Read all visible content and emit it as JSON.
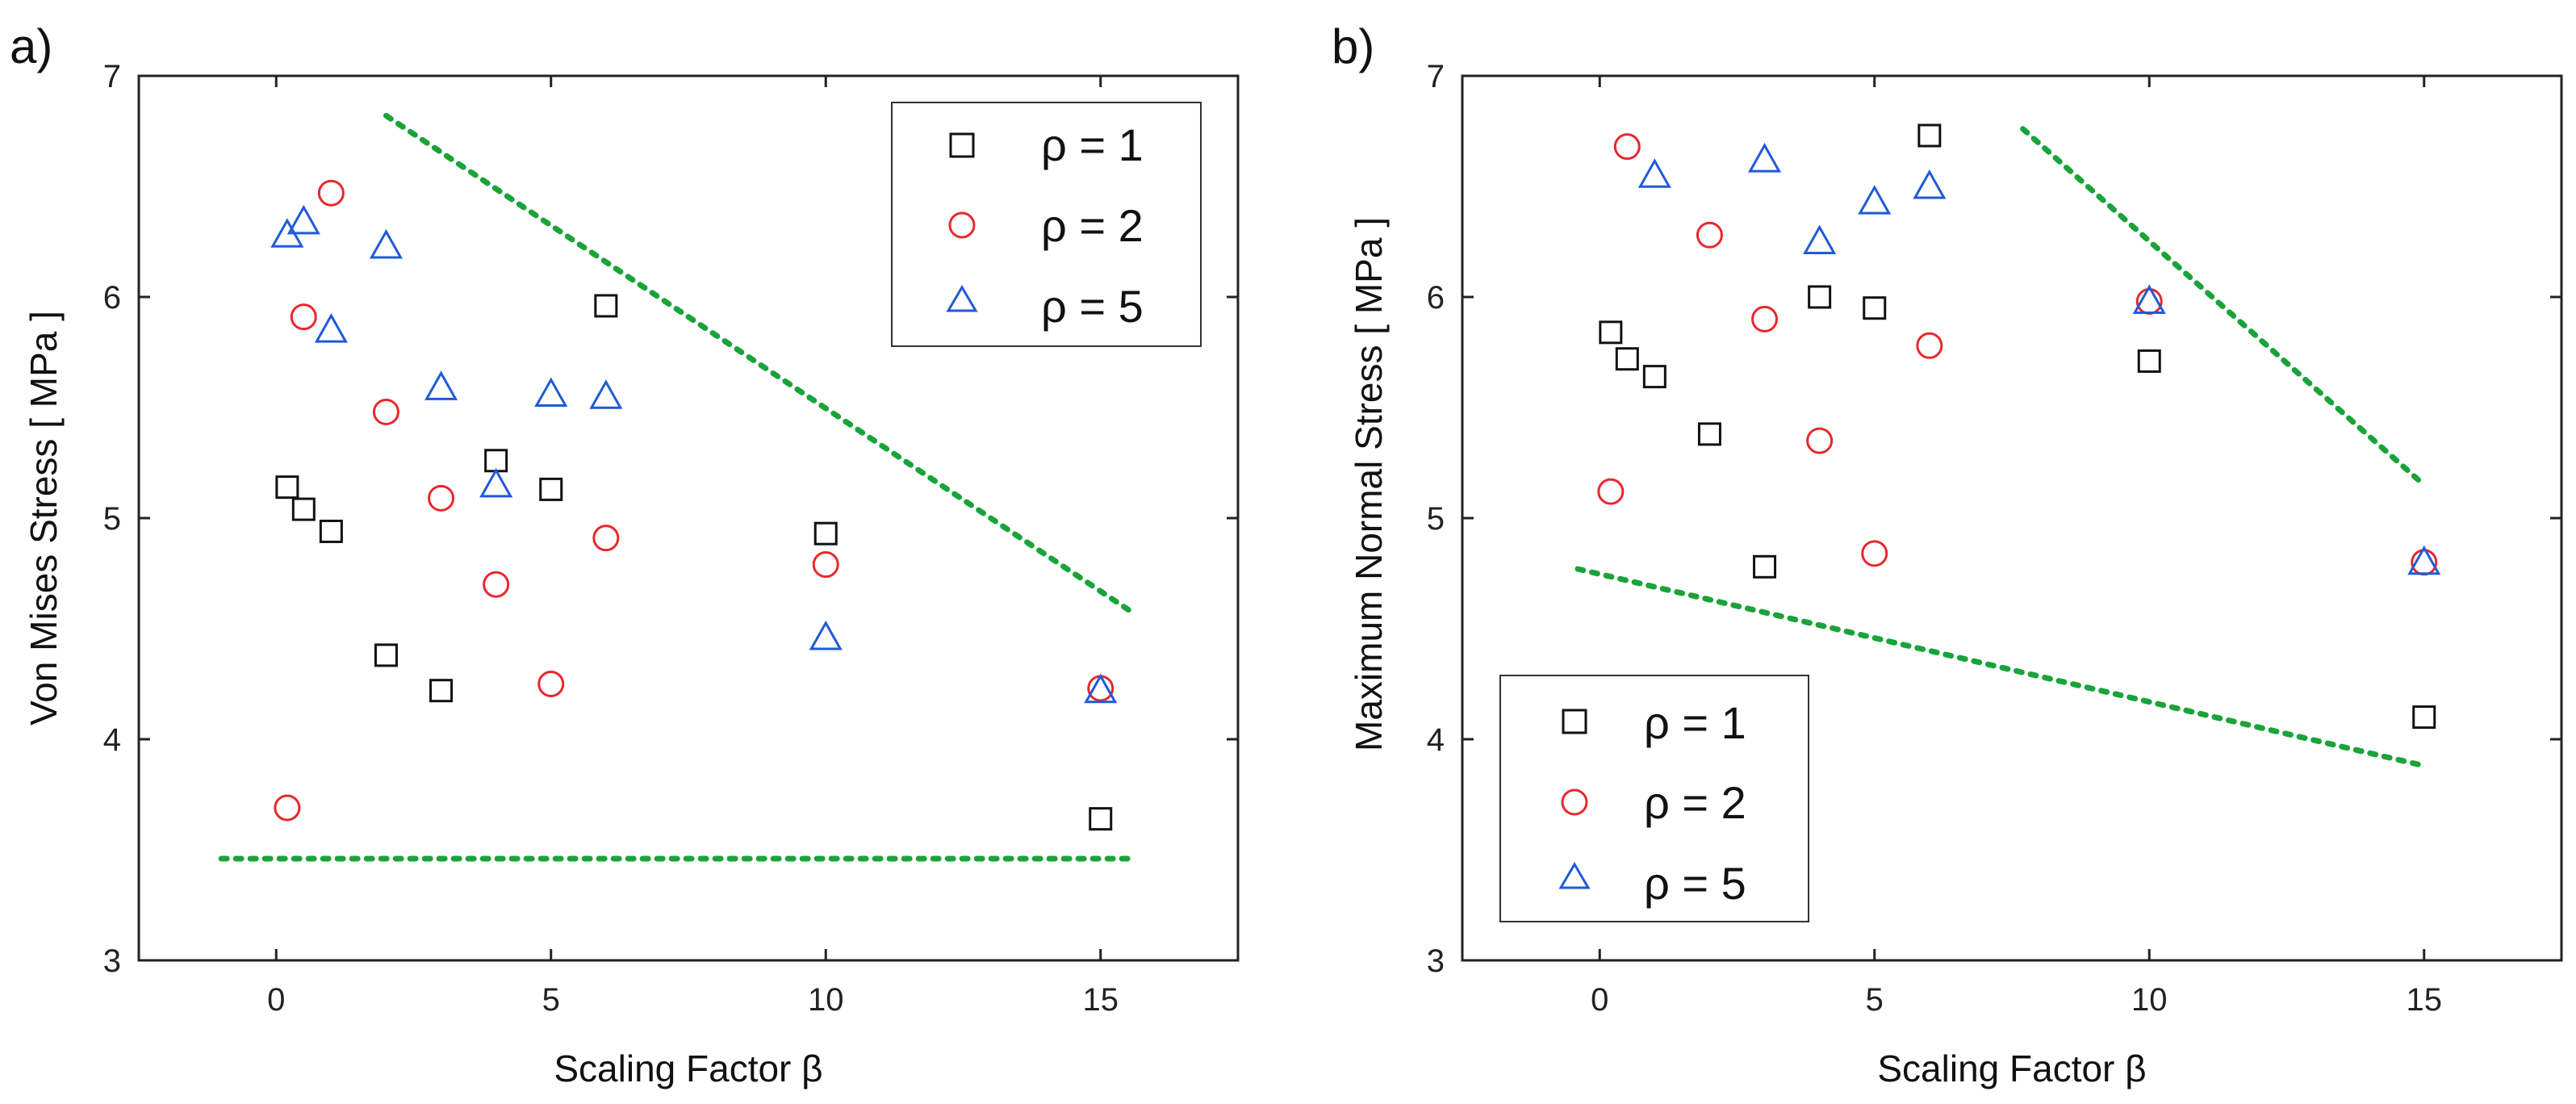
{
  "chart_data": [
    {
      "type": "scatter",
      "panel_label": "a)",
      "xlabel": "Scaling Factor β",
      "ylabel": "Von Mises Stress [ MPa ]",
      "xlim": [
        -2.5,
        17.5
      ],
      "ylim": [
        3,
        7
      ],
      "xticks": [
        0,
        5,
        10,
        15
      ],
      "yticks": [
        3,
        4,
        5,
        6,
        7
      ],
      "xtick_labels": [
        "0",
        "5",
        "10",
        "15"
      ],
      "ytick_labels": [
        "3",
        "4",
        "5",
        "6",
        "7"
      ],
      "legend_position": "top-right",
      "series": [
        {
          "name": "ρ = 1",
          "marker": "square",
          "color": "#111111",
          "x": [
            0.2,
            0.5,
            1,
            2,
            3,
            4,
            5,
            6,
            10,
            15
          ],
          "y": [
            5.14,
            5.04,
            4.94,
            4.38,
            4.22,
            5.26,
            5.13,
            5.96,
            4.93,
            3.64
          ]
        },
        {
          "name": "ρ = 2",
          "marker": "circle",
          "color": "#e8282c",
          "x": [
            0.2,
            0.5,
            1,
            2,
            3,
            4,
            5,
            6,
            10,
            15
          ],
          "y": [
            3.69,
            5.91,
            6.47,
            5.48,
            5.09,
            4.7,
            4.25,
            4.91,
            4.79,
            4.23
          ]
        },
        {
          "name": "ρ = 5",
          "marker": "triangle",
          "color": "#1f5bd6",
          "x": [
            0.2,
            0.5,
            1,
            2,
            3,
            4,
            5,
            6,
            10,
            15
          ],
          "y": [
            6.28,
            6.34,
            5.85,
            6.23,
            5.59,
            5.15,
            5.56,
            5.55,
            4.46,
            4.22
          ]
        }
      ],
      "guide_lines": [
        {
          "color": "#1aa33a",
          "x": [
            -1,
            15.6
          ],
          "y": [
            3.46,
            3.46
          ]
        },
        {
          "color": "#1aa33a",
          "x": [
            2,
            15.6
          ],
          "y": [
            6.82,
            4.57
          ]
        }
      ]
    },
    {
      "type": "scatter",
      "panel_label": "b)",
      "xlabel": "Scaling Factor β",
      "ylabel": "Maximum Normal Stress [ MPa ]",
      "xlim": [
        -2.5,
        17.5
      ],
      "ylim": [
        3,
        7
      ],
      "xticks": [
        0,
        5,
        10,
        15
      ],
      "yticks": [
        3,
        4,
        5,
        6,
        7
      ],
      "xtick_labels": [
        "0",
        "5",
        "10",
        "15"
      ],
      "ytick_labels": [
        "3",
        "4",
        "5",
        "6",
        "7"
      ],
      "legend_position": "bottom-left",
      "series": [
        {
          "name": "ρ = 1",
          "marker": "square",
          "color": "#111111",
          "x": [
            0.2,
            0.5,
            1,
            2,
            3,
            4,
            5,
            6,
            10,
            15
          ],
          "y": [
            5.84,
            5.72,
            5.64,
            5.38,
            4.78,
            6.0,
            5.95,
            6.73,
            5.71,
            4.1
          ]
        },
        {
          "name": "ρ = 2",
          "marker": "circle",
          "color": "#e8282c",
          "x": [
            0.2,
            0.5,
            2,
            3,
            4,
            5,
            6,
            10,
            15
          ],
          "y": [
            5.12,
            6.68,
            6.28,
            5.9,
            5.35,
            4.84,
            5.78,
            5.98,
            4.8
          ]
        },
        {
          "name": "ρ = 5",
          "marker": "triangle",
          "color": "#1f5bd6",
          "x": [
            1,
            3,
            4,
            5,
            6,
            10,
            15
          ],
          "y": [
            6.55,
            6.62,
            6.25,
            6.43,
            6.5,
            5.98,
            4.8
          ]
        }
      ],
      "guide_lines": [
        {
          "color": "#1aa33a",
          "x": [
            -0.4,
            15
          ],
          "y": [
            4.77,
            3.88
          ]
        },
        {
          "color": "#1aa33a",
          "x": [
            7.7,
            15
          ],
          "y": [
            6.76,
            5.15
          ]
        }
      ]
    }
  ]
}
